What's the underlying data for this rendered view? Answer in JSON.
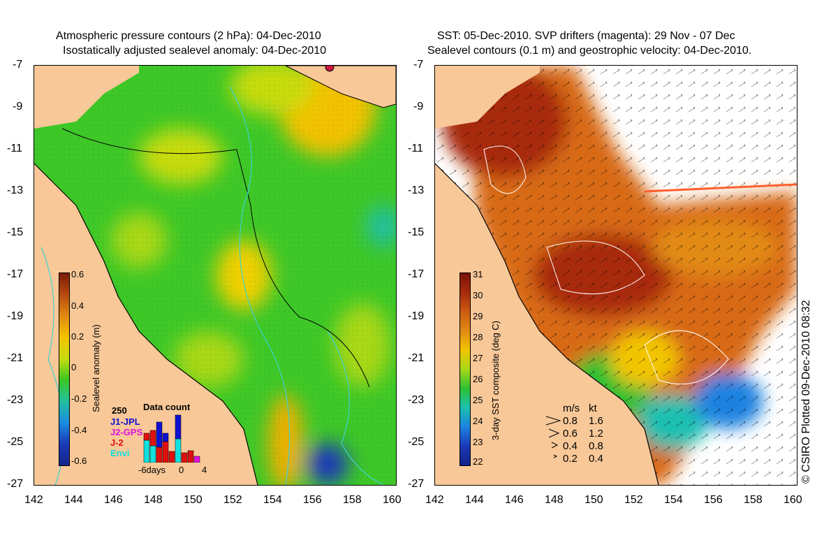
{
  "left_panel": {
    "title_line1": "Atmospheric pressure contours (2 hPa): 04-Dec-2010",
    "title_line2": "Isostatically adjusted sealevel anomaly: 04-Dec-2010",
    "y_ticks": [
      "-7",
      "-9",
      "-11",
      "-13",
      "-15",
      "-17",
      "-19",
      "-21",
      "-23",
      "-25",
      "-27"
    ],
    "x_ticks": [
      "142",
      "144",
      "146",
      "148",
      "150",
      "152",
      "154",
      "156",
      "158",
      "160"
    ],
    "colorbar_title": "Sealevel anomaly (m)",
    "colorbar_labels": [
      "0.6",
      "0.4",
      "0.2",
      "0",
      "-0.2",
      "-0.4",
      "-0.6"
    ],
    "colorbar_colors": [
      "#7a1a08",
      "#b84a10",
      "#e08a10",
      "#f2c200",
      "#c8dc10",
      "#39c820",
      "#22c0a0",
      "#1b8ce0",
      "#1a3ab8",
      "#16238a"
    ],
    "data_count": {
      "title": "Data count",
      "max_label": "250",
      "series": [
        {
          "name": "J1-JPL",
          "color": "#1010d0"
        },
        {
          "name": "J2-GPS",
          "color": "#e010e0"
        },
        {
          "name": "J-2",
          "color": "#e01010"
        },
        {
          "name": "Envi",
          "color": "#10e0e0"
        }
      ],
      "axis_labels": [
        "-6days",
        "0",
        "4"
      ]
    }
  },
  "right_panel": {
    "title_line1": "SST: 05-Dec-2010. SVP drifters (magenta): 29 Nov - 07 Dec",
    "title_line2": "Sealevel contours (0.1 m) and geostrophic velocity: 04-Dec-2010.",
    "y_ticks": [
      "-7",
      "-9",
      "-11",
      "-13",
      "-15",
      "-17",
      "-19",
      "-21",
      "-23",
      "-25",
      "-27"
    ],
    "x_ticks": [
      "142",
      "144",
      "146",
      "148",
      "150",
      "152",
      "154",
      "156",
      "158",
      "160"
    ],
    "colorbar_title": "3-day SST composite (deg C)",
    "colorbar_labels": [
      "31",
      "30",
      "29",
      "28",
      "27",
      "26",
      "25",
      "24",
      "23",
      "22"
    ],
    "colorbar_colors": [
      "#7a1208",
      "#a82a0c",
      "#cc5a10",
      "#e28a14",
      "#f2c400",
      "#a8d818",
      "#2cc032",
      "#1cc0b0",
      "#1c82e0",
      "#1a3ab8",
      "#14208a"
    ],
    "velocity_legend": {
      "header_ms": "m/s",
      "header_kt": "kt",
      "rows": [
        {
          "ms": "0.8",
          "kt": "1.6"
        },
        {
          "ms": "0.6",
          "kt": "1.2"
        },
        {
          "ms": "0.4",
          "kt": "0.8"
        },
        {
          "ms": "0.2",
          "kt": "0.4"
        }
      ]
    }
  },
  "credit": "© CSIRO Plotted 09-Dec-2010 08:32",
  "colors": {
    "land": "#f8c898",
    "cloud": "#ffffff",
    "coast": "#000000",
    "cyan_contour": "#40d0d0"
  }
}
